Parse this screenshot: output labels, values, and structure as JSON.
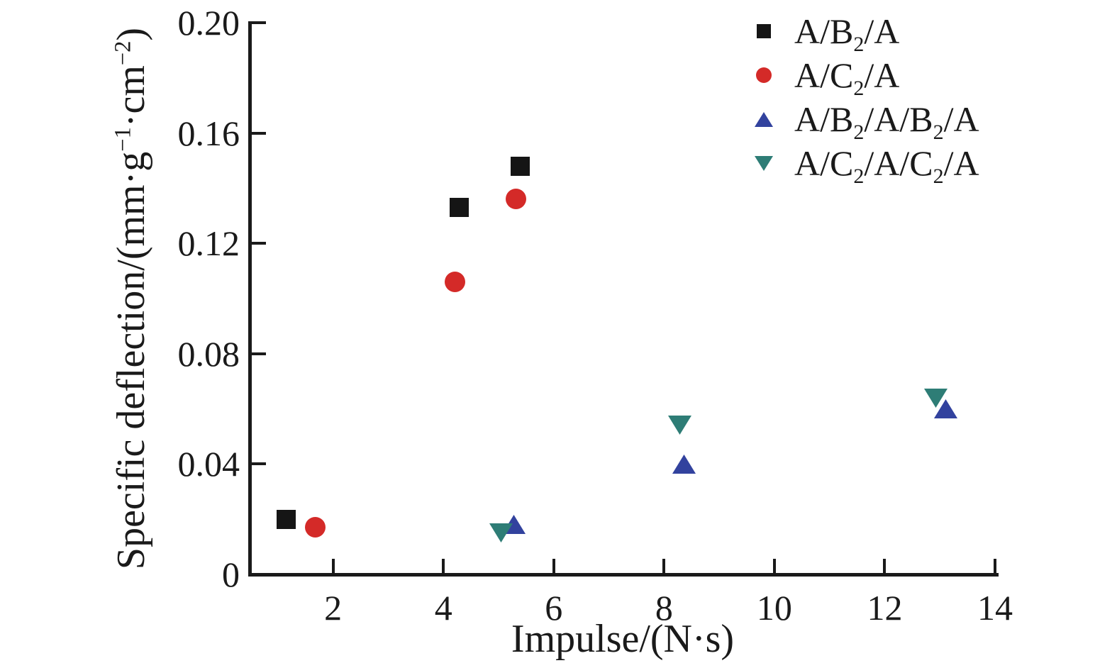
{
  "chart_data": {
    "type": "scatter",
    "title": "",
    "xlabel": "Impulse/(N·s)",
    "ylabel_parts": [
      {
        "t": "Specific deflection/(mm·g"
      },
      {
        "t": "−1",
        "sup": true
      },
      {
        "t": "·cm"
      },
      {
        "t": "−2",
        "sup": true
      },
      {
        "t": ")"
      }
    ],
    "xlim": [
      0.5,
      14
    ],
    "ylim": [
      0,
      0.2
    ],
    "grid": false,
    "legend_position": "top-right",
    "x_ticks": [
      {
        "v": 2,
        "label": "2"
      },
      {
        "v": 4,
        "label": "4"
      },
      {
        "v": 6,
        "label": "6"
      },
      {
        "v": 8,
        "label": "8"
      },
      {
        "v": 10,
        "label": "10"
      },
      {
        "v": 12,
        "label": "12"
      },
      {
        "v": 14,
        "label": "14"
      }
    ],
    "y_ticks": [
      {
        "v": 0,
        "label": "0",
        "mark": false
      },
      {
        "v": 0.04,
        "label": "0.04",
        "mark": true
      },
      {
        "v": 0.08,
        "label": "0.08",
        "mark": true
      },
      {
        "v": 0.12,
        "label": "0.12",
        "mark": true
      },
      {
        "v": 0.16,
        "label": "0.16",
        "mark": true
      },
      {
        "v": 0.2,
        "label": "0.20",
        "mark": true
      }
    ],
    "series": [
      {
        "id": "ab2a",
        "name": "A/B2/A",
        "label_parts": [
          {
            "t": "A/B"
          },
          {
            "t": "2",
            "sub": true
          },
          {
            "t": "/A"
          }
        ],
        "marker": "square",
        "color": "#151515",
        "points": [
          [
            1.15,
            0.02
          ],
          [
            4.28,
            0.133
          ],
          [
            5.39,
            0.148
          ]
        ]
      },
      {
        "id": "ac2a",
        "name": "A/C2/A",
        "label_parts": [
          {
            "t": "A/C"
          },
          {
            "t": "2",
            "sub": true
          },
          {
            "t": "/A"
          }
        ],
        "marker": "circle",
        "color": "#d42a28",
        "points": [
          [
            1.68,
            0.017
          ],
          [
            4.21,
            0.106
          ],
          [
            5.32,
            0.136
          ]
        ]
      },
      {
        "id": "ab2ab2a",
        "name": "A/B2/A/B2/A",
        "label_parts": [
          {
            "t": "A/B"
          },
          {
            "t": "2",
            "sub": true
          },
          {
            "t": "/A/B"
          },
          {
            "t": "2",
            "sub": true
          },
          {
            "t": "/A"
          }
        ],
        "marker": "triangle-up",
        "color": "#32429e",
        "points": [
          [
            5.28,
            0.018
          ],
          [
            8.36,
            0.04
          ],
          [
            13.1,
            0.06
          ]
        ]
      },
      {
        "id": "ac2ac2a",
        "name": "A/C2/A/C2/A",
        "label_parts": [
          {
            "t": "A/C"
          },
          {
            "t": "2",
            "sub": true
          },
          {
            "t": "/A/C"
          },
          {
            "t": "2",
            "sub": true
          },
          {
            "t": "/A"
          }
        ],
        "marker": "triangle-down",
        "color": "#2e7d76",
        "points": [
          [
            5.05,
            0.015
          ],
          [
            8.29,
            0.054
          ],
          [
            12.92,
            0.064
          ]
        ]
      }
    ]
  }
}
